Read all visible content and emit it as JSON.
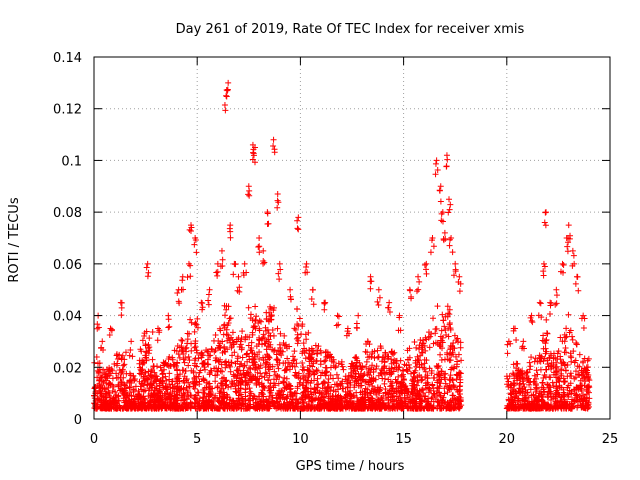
{
  "chart_data": {
    "type": "scatter",
    "title": "Day 261 of 2019, Rate Of TEC Index for receiver xmis",
    "xlabel": "GPS time / hours",
    "ylabel": "ROTI / TECUs",
    "xlim": [
      0,
      25
    ],
    "ylim": [
      0,
      0.14
    ],
    "xticks": [
      0,
      5,
      10,
      15,
      20,
      25
    ],
    "xtick_labels": [
      "0",
      "5",
      "10",
      "15",
      "20",
      "25"
    ],
    "yticks": [
      0,
      0.02,
      0.04,
      0.06,
      0.08,
      0.1,
      0.12,
      0.14
    ],
    "ytick_labels": [
      "0",
      "0.02",
      "0.04",
      "0.06",
      "0.08",
      "0.1",
      "0.12",
      "0.14"
    ],
    "grid": true,
    "marker": "+",
    "series_color": "#ff0000",
    "data_gaps_hours": [
      [
        17.8,
        20.0
      ],
      [
        24.0,
        25.0
      ]
    ],
    "series": [
      {
        "name": "ROTI",
        "x": [
          0.2,
          0.4,
          0.8,
          1.3,
          1.8,
          2.6,
          3.1,
          3.6,
          4.1,
          4.3,
          4.6,
          4.7,
          4.9,
          5.2,
          5.6,
          6.0,
          6.2,
          6.4,
          6.5,
          6.6,
          6.8,
          7.0,
          7.3,
          7.5,
          7.7,
          7.8,
          8.0,
          8.2,
          8.4,
          8.7,
          8.9,
          9.0,
          9.5,
          9.9,
          10.3,
          10.6,
          11.2,
          11.8,
          12.3,
          12.8,
          13.4,
          13.8,
          14.3,
          14.8,
          15.3,
          15.7,
          16.1,
          16.4,
          16.6,
          16.8,
          16.9,
          17.0,
          17.1,
          17.2,
          17.3,
          17.5,
          17.7,
          20.1,
          20.4,
          20.8,
          21.2,
          21.6,
          21.8,
          21.9,
          22.1,
          22.4,
          22.7,
          22.9,
          23.0,
          23.2,
          23.4,
          23.7
        ],
        "y": [
          0.04,
          0.03,
          0.035,
          0.045,
          0.03,
          0.06,
          0.035,
          0.04,
          0.05,
          0.055,
          0.06,
          0.075,
          0.07,
          0.045,
          0.05,
          0.06,
          0.065,
          0.125,
          0.13,
          0.075,
          0.06,
          0.055,
          0.06,
          0.09,
          0.106,
          0.105,
          0.07,
          0.065,
          0.08,
          0.108,
          0.087,
          0.06,
          0.05,
          0.078,
          0.06,
          0.05,
          0.045,
          0.04,
          0.035,
          0.04,
          0.055,
          0.05,
          0.045,
          0.04,
          0.05,
          0.055,
          0.06,
          0.07,
          0.1,
          0.09,
          0.08,
          0.072,
          0.102,
          0.085,
          0.07,
          0.06,
          0.055,
          0.03,
          0.035,
          0.03,
          0.04,
          0.045,
          0.06,
          0.08,
          0.045,
          0.05,
          0.06,
          0.07,
          0.075,
          0.065,
          0.055,
          0.04
        ]
      }
    ]
  }
}
